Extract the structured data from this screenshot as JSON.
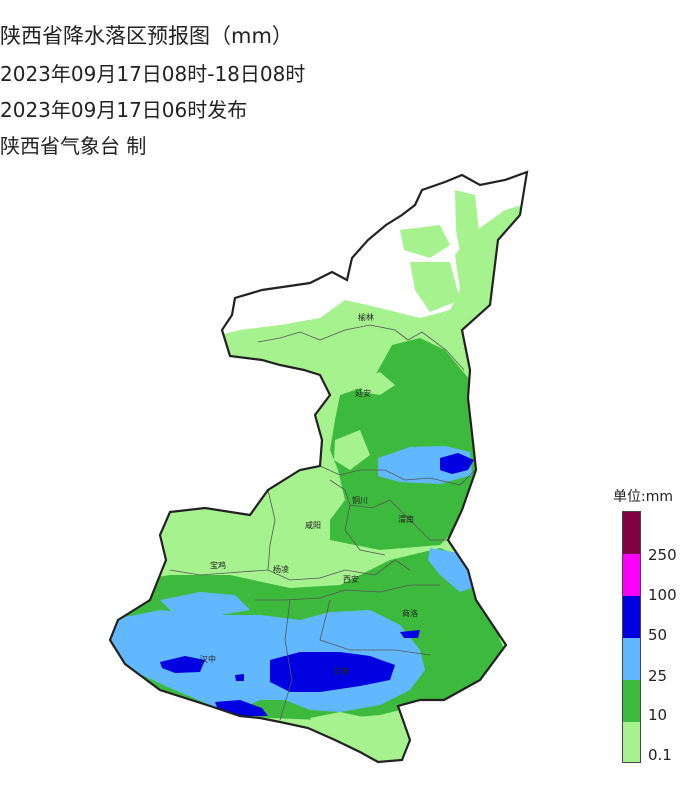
{
  "header": {
    "title": "陕西省降水落区预报图（mm）",
    "period": "2023年09月17日08时-18日08时",
    "issued": "2023年09月17日06时发布",
    "issuer": "陕西省气象台 制"
  },
  "legend": {
    "title": "单位:mm",
    "levels": [
      {
        "label": "0.1",
        "color": "#a6f28f"
      },
      {
        "label": "10",
        "color": "#3dba3d"
      },
      {
        "label": "25",
        "color": "#61b8ff"
      },
      {
        "label": "50",
        "color": "#0000e1"
      },
      {
        "label": "100",
        "color": "#fa00fa"
      },
      {
        "label": "250",
        "color": "#800040"
      }
    ]
  },
  "cities": {
    "yulin": "榆林",
    "yanan": "延安",
    "tongchuan": "铜川",
    "weinan": "渭南",
    "xianyang": "咸阳",
    "baoji": "宝鸡",
    "yangling": "杨凌",
    "xian": "西安",
    "shangluo": "商洛",
    "hanzhong": "汉中",
    "ankang": "安康"
  }
}
